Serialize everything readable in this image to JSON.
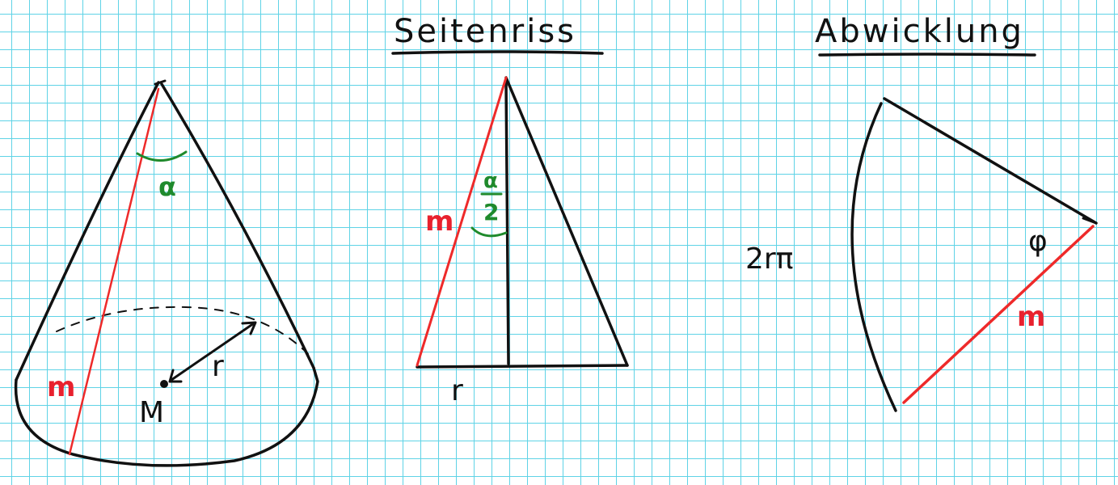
{
  "headings": {
    "side_view": "Seitenriss",
    "net": "Abwicklung"
  },
  "cone": {
    "slant_label": "m",
    "angle_label": "α",
    "radius_label": "r",
    "center_label": "M"
  },
  "side_view": {
    "slant_label": "m",
    "half_angle_numerator": "α",
    "half_angle_denominator": "2",
    "radius_label": "r"
  },
  "net": {
    "arc_length_label": "2rπ",
    "angle_label": "φ",
    "slant_label": "m"
  },
  "colors": {
    "grid": "#5fd3e6",
    "ink": "#111111",
    "slant": "#ee2a2a",
    "angle": "#1f8a2c"
  }
}
